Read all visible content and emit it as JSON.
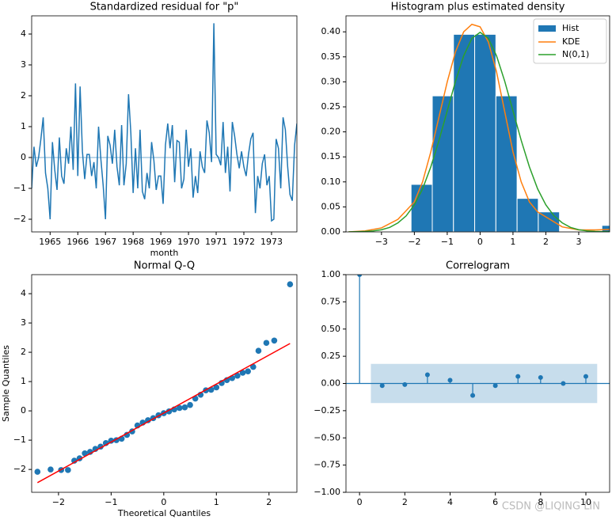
{
  "chart_data": [
    {
      "type": "line",
      "title": "Standardized residual for \"p\"",
      "x_label": "month",
      "color": "#1f77b4",
      "values": [
        -1.0,
        0.35,
        -0.3,
        0.0,
        0.6,
        1.3,
        -0.5,
        -1.0,
        -2.0,
        0.5,
        -0.4,
        -1.05,
        0.65,
        -0.6,
        -0.85,
        0.3,
        -0.2,
        1.0,
        -0.4,
        2.4,
        -0.6,
        2.3,
        0.2,
        -0.7,
        0.1,
        0.1,
        -0.6,
        -0.15,
        -1.0,
        1.0,
        -0.05,
        -0.9,
        -2.0,
        0.7,
        0.4,
        -0.2,
        0.9,
        -0.3,
        -0.9,
        1.05,
        -0.9,
        -0.2,
        2.05,
        0.8,
        -1.15,
        0.3,
        -1.0,
        0.9,
        -1.1,
        -1.35,
        -0.5,
        -1.0,
        0.5,
        -0.1,
        -1.05,
        -0.6,
        -0.6,
        -1.5,
        0.4,
        1.1,
        0.3,
        1.05,
        -0.8,
        0.55,
        0.5,
        -1.0,
        -0.7,
        0.9,
        -0.3,
        0.3,
        -1.3,
        -0.6,
        -1.15,
        0.2,
        -0.3,
        -0.5,
        1.2,
        0.8,
        -0.15,
        4.35,
        0.1,
        0.0,
        -0.25,
        1.15,
        -0.5,
        0.35,
        -1.1,
        1.15,
        0.7,
        0.1,
        -0.35,
        0.2,
        -0.3,
        -0.6,
        0.1,
        0.6,
        0.8,
        -1.8,
        -0.6,
        -1.0,
        -0.2,
        0.1,
        -0.9,
        -0.6,
        -2.05,
        -2.0,
        0.6,
        0.3,
        -1.0,
        1.3,
        0.9,
        -0.3,
        -1.2,
        -1.4,
        0.4,
        1.1
      ],
      "xlim": [
        0,
        115
      ],
      "ylim": [
        -2.41,
        4.59
      ],
      "xticks": [
        {
          "value": 8,
          "label": "1965"
        },
        {
          "value": 20,
          "label": "1966"
        },
        {
          "value": 32,
          "label": "1967"
        },
        {
          "value": 44,
          "label": "1968"
        },
        {
          "value": 56,
          "label": "1969"
        },
        {
          "value": 68,
          "label": "1970"
        },
        {
          "value": 80,
          "label": "1971"
        },
        {
          "value": 92,
          "label": "1972"
        },
        {
          "value": 104,
          "label": "1973"
        }
      ],
      "yticks": [
        {
          "value": -2,
          "label": "−2"
        },
        {
          "value": -1,
          "label": "−1"
        },
        0,
        1,
        2,
        3,
        4
      ],
      "hline": 0
    },
    {
      "type": "histogram",
      "title": "Histogram plus estimated density",
      "name": "Hist",
      "color": "#1f77b4",
      "bins": [
        -2.1,
        -1.455,
        -0.81,
        -0.165,
        0.48,
        1.125,
        1.77,
        2.415,
        3.06,
        3.705,
        4.35
      ],
      "values": [
        0.095,
        0.272,
        0.395,
        0.395,
        0.272,
        0.067,
        0.04,
        0,
        0,
        0.013
      ],
      "series": [
        {
          "name": "KDE",
          "color": "#ff7f0e",
          "x": [
            -4,
            -3.5,
            -3,
            -2.5,
            -2,
            -1.75,
            -1.5,
            -1.25,
            -1,
            -0.75,
            -0.5,
            -0.25,
            0,
            0.25,
            0.5,
            0.75,
            1,
            1.25,
            1.5,
            1.75,
            2,
            2.25,
            2.5,
            3,
            3.5,
            4
          ],
          "values": [
            0,
            0.002,
            0.008,
            0.025,
            0.06,
            0.1,
            0.16,
            0.23,
            0.3,
            0.36,
            0.4,
            0.415,
            0.41,
            0.38,
            0.32,
            0.24,
            0.16,
            0.1,
            0.06,
            0.04,
            0.03,
            0.02,
            0.01,
            0.004,
            0.004,
            0.005
          ]
        },
        {
          "name": "N(0,1)",
          "color": "#2ca02c",
          "x": [
            -4,
            -3.75,
            -3.5,
            -3.25,
            -3,
            -2.75,
            -2.5,
            -2.25,
            -2,
            -1.75,
            -1.5,
            -1.25,
            -1,
            -0.75,
            -0.5,
            -0.25,
            0,
            0.25,
            0.5,
            0.75,
            1,
            1.25,
            1.5,
            1.75,
            2,
            2.25,
            2.5,
            2.75,
            3,
            3.25,
            3.5,
            3.75,
            4
          ],
          "values": [
            0.0001,
            0.0004,
            0.0009,
            0.002,
            0.0044,
            0.009,
            0.018,
            0.032,
            0.054,
            0.086,
            0.13,
            0.183,
            0.242,
            0.301,
            0.352,
            0.387,
            0.399,
            0.387,
            0.352,
            0.301,
            0.242,
            0.183,
            0.13,
            0.086,
            0.054,
            0.032,
            0.018,
            0.009,
            0.0044,
            0.002,
            0.0009,
            0.0004,
            0.0001
          ]
        }
      ],
      "xlim": [
        -4.08,
        3.94
      ],
      "ylim": [
        0,
        0.432
      ],
      "xticks": [
        {
          "value": -3,
          "label": "−3"
        },
        {
          "value": -2,
          "label": "−2"
        },
        {
          "value": -1,
          "label": "−1"
        },
        0,
        1,
        2,
        3
      ],
      "yticks": [
        {
          "value": 0,
          "label": "0.00"
        },
        {
          "value": 0.05,
          "label": "0.05"
        },
        {
          "value": 0.1,
          "label": "0.10"
        },
        {
          "value": 0.15,
          "label": "0.15"
        },
        {
          "value": 0.2,
          "label": "0.20"
        },
        {
          "value": 0.25,
          "label": "0.25"
        },
        {
          "value": 0.3,
          "label": "0.30"
        },
        {
          "value": 0.35,
          "label": "0.35"
        },
        {
          "value": 0.4,
          "label": "0.40"
        }
      ],
      "legend": "upper right"
    },
    {
      "type": "scatter",
      "title": "Normal Q-Q",
      "x_label": "Theoretical Quantiles",
      "y_label": "Sample Quantiles",
      "color": "#1f77b4",
      "x": [
        -2.4,
        -2.15,
        -1.95,
        -1.82,
        -1.7,
        -1.6,
        -1.5,
        -1.4,
        -1.3,
        -1.2,
        -1.1,
        -1.0,
        -0.9,
        -0.8,
        -0.7,
        -0.6,
        -0.5,
        -0.4,
        -0.3,
        -0.2,
        -0.1,
        0,
        0.1,
        0.2,
        0.3,
        0.4,
        0.5,
        0.6,
        0.7,
        0.8,
        0.9,
        1.0,
        1.1,
        1.2,
        1.3,
        1.4,
        1.5,
        1.6,
        1.7,
        1.8,
        1.95,
        2.1,
        2.4
      ],
      "values": [
        -2.08,
        -2.0,
        -2.02,
        -2.02,
        -1.7,
        -1.62,
        -1.45,
        -1.4,
        -1.3,
        -1.22,
        -1.1,
        -1.02,
        -1.0,
        -0.95,
        -0.82,
        -0.7,
        -0.5,
        -0.4,
        -0.32,
        -0.25,
        -0.15,
        -0.08,
        -0.02,
        0.05,
        0.1,
        0.12,
        0.2,
        0.42,
        0.55,
        0.7,
        0.72,
        0.8,
        0.95,
        1.05,
        1.12,
        1.2,
        1.3,
        1.35,
        1.5,
        2.05,
        2.32,
        2.4,
        4.32
      ],
      "fit_line": {
        "color": "#ff0000",
        "x": [
          -2.4,
          2.4
        ],
        "values": [
          -2.45,
          2.3
        ]
      },
      "xlim": [
        -2.51,
        2.53
      ],
      "ylim": [
        -2.78,
        4.65
      ],
      "xticks": [
        {
          "value": -2,
          "label": "−2"
        },
        {
          "value": -1,
          "label": "−1"
        },
        0,
        1,
        2
      ],
      "yticks": [
        {
          "value": -2,
          "label": "−2"
        },
        {
          "value": -1,
          "label": "−1"
        },
        0,
        1,
        2,
        3,
        4
      ]
    },
    {
      "type": "stem",
      "title": "Correlogram",
      "color": "#1f77b4",
      "x": [
        0,
        1,
        2,
        3,
        4,
        5,
        6,
        7,
        8,
        9,
        10
      ],
      "values": [
        1,
        -0.02,
        -0.01,
        0.08,
        0.03,
        -0.11,
        -0.02,
        0.065,
        0.055,
        0,
        0.065
      ],
      "band": {
        "x": [
          0.5,
          10.5
        ],
        "values": [
          -0.18,
          0.18
        ]
      },
      "hline": 0,
      "xlim": [
        -0.6,
        11.05
      ],
      "ylim": [
        -1,
        1
      ],
      "xticks": [
        0,
        2,
        4,
        6,
        8,
        10
      ],
      "yticks": [
        {
          "value": -1,
          "label": "−1.00"
        },
        {
          "value": -0.75,
          "label": "−0.75"
        },
        {
          "value": -0.5,
          "label": "−0.50"
        },
        {
          "value": -0.25,
          "label": "−0.25"
        },
        {
          "value": 0,
          "label": "0.00"
        },
        {
          "value": 0.25,
          "label": "0.25"
        },
        {
          "value": 0.5,
          "label": "0.50"
        },
        {
          "value": 0.75,
          "label": "0.75"
        },
        {
          "value": 1,
          "label": "1.00"
        }
      ]
    }
  ],
  "watermark": "CSDN @LIQING LIN"
}
